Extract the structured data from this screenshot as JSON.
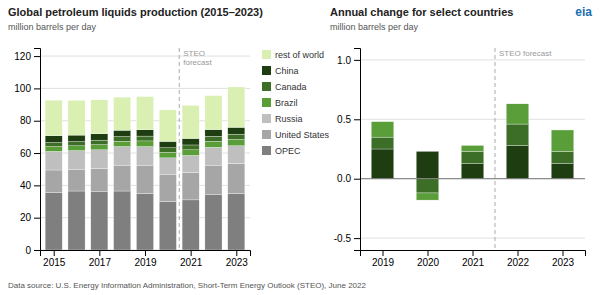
{
  "chart_data": [
    {
      "type": "bar",
      "stacked": true,
      "title": "Global petroleum liquids production (2015–2023)",
      "subtitle": "million barrels per day",
      "x": [
        2015,
        2016,
        2017,
        2018,
        2019,
        2020,
        2021,
        2022,
        2023
      ],
      "xlim": [
        2014.4,
        2023.6
      ],
      "xticks": [
        2015,
        2017,
        2019,
        2021,
        2023
      ],
      "ylim": [
        0,
        125
      ],
      "yticks": [
        0,
        20,
        40,
        60,
        80,
        100,
        120
      ],
      "grid": true,
      "legend": "right",
      "series": [
        {
          "name": "OPEC",
          "color": "#7f7f7f",
          "values": [
            35.5,
            36.5,
            36.0,
            36.5,
            35.0,
            30.0,
            31.0,
            34.5,
            35.0
          ]
        },
        {
          "name": "United States",
          "color": "#a6a6a6",
          "values": [
            14.0,
            13.5,
            14.5,
            16.0,
            17.5,
            16.5,
            17.0,
            18.0,
            18.5
          ]
        },
        {
          "name": "Russia",
          "color": "#bfbfbf",
          "values": [
            11.5,
            11.5,
            11.5,
            11.5,
            11.5,
            10.5,
            10.5,
            11.0,
            11.0
          ]
        },
        {
          "name": "Brazil",
          "color": "#5a9e3a",
          "values": [
            3.0,
            3.0,
            3.2,
            3.3,
            3.5,
            3.4,
            3.5,
            3.7,
            3.9
          ]
        },
        {
          "name": "Canada",
          "color": "#3d6e27",
          "values": [
            2.5,
            2.6,
            2.8,
            2.9,
            3.0,
            2.9,
            3.0,
            3.2,
            3.3
          ]
        },
        {
          "name": "China",
          "color": "#1e3d10",
          "values": [
            4.2,
            4.0,
            3.9,
            3.9,
            3.9,
            3.9,
            4.0,
            4.1,
            4.2
          ]
        },
        {
          "name": "rest of world",
          "color": "#d9f0b2",
          "values": [
            22.0,
            21.5,
            21.0,
            20.5,
            20.5,
            19.5,
            20.5,
            21.0,
            25.0
          ]
        }
      ],
      "annotations": [
        {
          "text": "STEO\nforecast",
          "x": 2020.5
        }
      ]
    },
    {
      "type": "bar",
      "stacked": true,
      "title": "Annual change for select countries",
      "subtitle": "million barrels per day",
      "x": [
        2019,
        2020,
        2021,
        2022,
        2023
      ],
      "xlim": [
        2018.5,
        2023.5
      ],
      "xticks": [
        2019,
        2020,
        2021,
        2022,
        2023
      ],
      "ylim": [
        -0.6,
        1.1
      ],
      "yticks": [
        -0.5,
        {
          "value": 0,
          "label": "0.0"
        },
        0.5,
        {
          "value": 1,
          "label": "1.0"
        }
      ],
      "grid": true,
      "series": [
        {
          "name": "China",
          "color": "#1e3d10",
          "values": [
            0.25,
            0.23,
            0.13,
            0.28,
            0.13
          ]
        },
        {
          "name": "Canada",
          "color": "#3d6e27",
          "values": [
            0.1,
            -0.12,
            0.1,
            0.18,
            0.1
          ]
        },
        {
          "name": "Brazil",
          "color": "#5a9e3a",
          "values": [
            0.13,
            -0.06,
            0.05,
            0.17,
            0.18
          ]
        }
      ],
      "annotations": [
        {
          "text": "STEO forecast",
          "x": 2021.5
        }
      ]
    }
  ],
  "source": "Data source: U.S. Energy Information Administration, Short-Term Energy Outlook (STEO), June 2022",
  "logo": "eia"
}
